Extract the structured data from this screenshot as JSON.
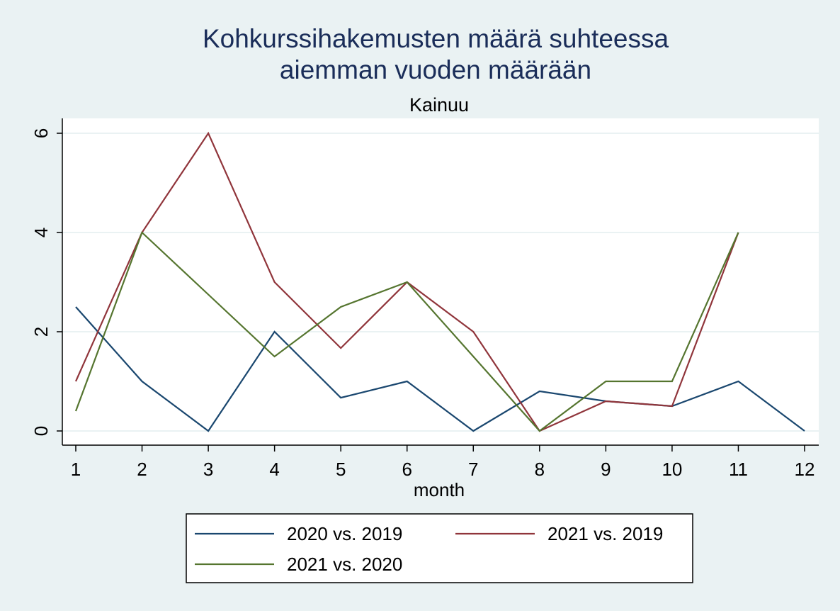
{
  "chart_data": {
    "type": "line",
    "title_lines": [
      "Kohkurssihakemusten määrä suhteessa",
      "aiemman vuoden määrään"
    ],
    "subtitle": "Kainuu",
    "xlabel": "month",
    "ylabel": "",
    "x_ticks": [
      1,
      2,
      3,
      4,
      5,
      6,
      7,
      8,
      9,
      10,
      11,
      12
    ],
    "y_ticks": [
      0,
      2,
      4,
      6
    ],
    "xlim": [
      1,
      12
    ],
    "ylim": [
      0,
      6
    ],
    "grid": "horizontal",
    "legend_position": "bottom",
    "series": [
      {
        "name": "2020 vs. 2019",
        "color": "#1a476f",
        "x": [
          1,
          2,
          3,
          4,
          5,
          6,
          7,
          8,
          9,
          10,
          11,
          12
        ],
        "y": [
          2.5,
          1,
          0,
          2,
          0.67,
          1,
          0,
          0.8,
          0.6,
          0.5,
          1,
          0
        ]
      },
      {
        "name": "2021 vs. 2019",
        "color": "#90353b",
        "x": [
          1,
          2,
          3,
          4,
          5,
          6,
          7,
          8,
          9,
          10,
          11
        ],
        "y": [
          1,
          4,
          6,
          3,
          1.67,
          3,
          2,
          0,
          0.6,
          0.5,
          4
        ]
      },
      {
        "name": "2021 vs. 2020",
        "color": "#55752f",
        "x": [
          1,
          2,
          3,
          4,
          5,
          6,
          7,
          8,
          9,
          10,
          11
        ],
        "y": [
          0.4,
          4,
          2.75,
          1.5,
          2.5,
          3,
          1.5,
          0,
          1,
          1,
          4
        ]
      }
    ]
  }
}
